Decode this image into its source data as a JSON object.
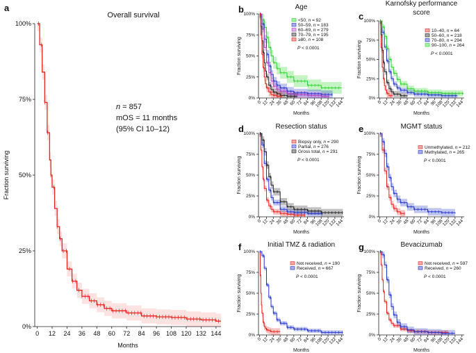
{
  "chart_data": [
    {
      "id": "a",
      "panel_label": "a",
      "type": "line",
      "title": "Overall survival",
      "xlabel": "Months",
      "ylabel": "Fraction surviving",
      "xlim": [
        -2,
        148
      ],
      "ylim": [
        0,
        1
      ],
      "xticks": [
        0,
        12,
        24,
        36,
        48,
        60,
        72,
        84,
        96,
        108,
        120,
        132,
        144
      ],
      "yticks": [
        0,
        0.25,
        0.5,
        0.75,
        1.0
      ],
      "ytick_labels": [
        "0%",
        "25%",
        "50%",
        "75%",
        "100%"
      ],
      "annotations": [
        {
          "prefix": "n",
          "text": " = 857"
        },
        {
          "text": "mOS = 11 months"
        },
        {
          "text": "(95% CI 10–12)"
        }
      ],
      "series": [
        {
          "name": "All patients",
          "color": "#e8231f",
          "end": 148,
          "ci": 0.025,
          "x": [
            0,
            2,
            4,
            6,
            8,
            10,
            11,
            12,
            14,
            16,
            18,
            20,
            24,
            28,
            32,
            36,
            42,
            48,
            54,
            60,
            72,
            84,
            96,
            108,
            120,
            132,
            144,
            148
          ],
          "y": [
            1.0,
            0.93,
            0.84,
            0.74,
            0.64,
            0.55,
            0.5,
            0.46,
            0.39,
            0.33,
            0.29,
            0.25,
            0.19,
            0.15,
            0.12,
            0.1,
            0.085,
            0.072,
            0.06,
            0.052,
            0.045,
            0.035,
            0.032,
            0.03,
            0.025,
            0.022,
            0.018,
            0.018
          ]
        }
      ]
    },
    {
      "id": "b",
      "panel_label": "b",
      "type": "line",
      "title": "Age",
      "xlabel": "Months",
      "ylabel": "Fraction surviving",
      "xlim": [
        -2,
        148
      ],
      "ylim": [
        0,
        1
      ],
      "xticks": [
        0,
        12,
        24,
        36,
        48,
        60,
        72,
        84,
        96,
        108,
        120,
        132,
        144
      ],
      "yticks": [
        0,
        0.25,
        0.5,
        0.75,
        1.0
      ],
      "ytick_labels": [
        "0%",
        "25%",
        "50%",
        "75%",
        "100%"
      ],
      "pvalue": {
        "prefix": "P",
        "text": " < 0.0001"
      },
      "series": [
        {
          "name": "<50, n = 92",
          "name_prefix": "<50, ",
          "name_suffix": " = 92",
          "color": "#2bd42b",
          "end": 144,
          "ci": 0.07,
          "x": [
            0,
            4,
            8,
            12,
            16,
            20,
            24,
            30,
            36,
            48,
            60,
            84,
            108,
            144
          ],
          "y": [
            1,
            0.93,
            0.84,
            0.72,
            0.6,
            0.5,
            0.42,
            0.35,
            0.3,
            0.25,
            0.2,
            0.15,
            0.12,
            0.12
          ]
        },
        {
          "name": "50–59, n = 183",
          "name_prefix": "50–59, ",
          "name_suffix": " = 183",
          "color": "#2233cc",
          "end": 128,
          "ci": 0.05,
          "x": [
            0,
            4,
            8,
            12,
            16,
            20,
            24,
            30,
            36,
            48,
            60,
            84,
            108,
            128
          ],
          "y": [
            1,
            0.88,
            0.7,
            0.52,
            0.38,
            0.28,
            0.2,
            0.15,
            0.12,
            0.08,
            0.06,
            0.05,
            0.04,
            0.04
          ]
        },
        {
          "name": "60–69, n = 279",
          "name_prefix": "60–69, ",
          "name_suffix": " = 279",
          "color": "#b040c0",
          "end": 122,
          "ci": 0.04,
          "x": [
            0,
            4,
            8,
            12,
            16,
            20,
            24,
            30,
            36,
            48,
            60,
            84,
            108,
            122
          ],
          "y": [
            1,
            0.82,
            0.6,
            0.42,
            0.3,
            0.2,
            0.14,
            0.1,
            0.08,
            0.05,
            0.04,
            0.03,
            0.02,
            0.02
          ]
        },
        {
          "name": "70–79, n = 195",
          "name_prefix": "70–79, ",
          "name_suffix": " = 195",
          "color": "#222222",
          "end": 66,
          "ci": 0.04,
          "x": [
            0,
            2,
            4,
            6,
            8,
            10,
            12,
            16,
            20,
            24,
            30,
            36,
            48,
            66
          ],
          "y": [
            1,
            0.85,
            0.68,
            0.54,
            0.42,
            0.32,
            0.25,
            0.15,
            0.1,
            0.07,
            0.05,
            0.03,
            0.02,
            0.02
          ]
        },
        {
          "name": "≥80, n = 108",
          "name_prefix": "≥80, ",
          "name_suffix": " = 108",
          "color": "#e8231f",
          "end": 40,
          "ci": 0.05,
          "x": [
            0,
            2,
            4,
            6,
            8,
            10,
            12,
            16,
            20,
            24,
            30,
            40
          ],
          "y": [
            1,
            0.75,
            0.52,
            0.36,
            0.25,
            0.17,
            0.12,
            0.07,
            0.04,
            0.03,
            0.02,
            0.02
          ]
        }
      ]
    },
    {
      "id": "c",
      "panel_label": "c",
      "type": "line",
      "title": "Karnofsky performance",
      "title_line2": "score",
      "xlabel": "Months",
      "ylabel": "Fraction surviving",
      "xlim": [
        -2,
        148
      ],
      "ylim": [
        0,
        1
      ],
      "xticks": [
        0,
        12,
        24,
        36,
        48,
        60,
        72,
        84,
        96,
        108,
        120,
        132,
        144
      ],
      "yticks": [
        0,
        0.25,
        0.5,
        0.75,
        1.0
      ],
      "ytick_labels": [
        "0%",
        "25%",
        "50%",
        "75%",
        "100%"
      ],
      "pvalue": {
        "prefix": "P",
        "text": " < 0.0001"
      },
      "series": [
        {
          "name": "10–40, n = 64",
          "name_prefix": "10–40, ",
          "name_suffix": " = 64",
          "color": "#e8231f",
          "end": 22,
          "ci": 0.06,
          "x": [
            0,
            2,
            4,
            6,
            8,
            10,
            12,
            16,
            22
          ],
          "y": [
            1,
            0.65,
            0.4,
            0.25,
            0.16,
            0.1,
            0.06,
            0.03,
            0.02
          ]
        },
        {
          "name": "50–60, n = 218",
          "name_prefix": "50–60, ",
          "name_suffix": " = 218",
          "color": "#222222",
          "end": 48,
          "ci": 0.04,
          "x": [
            0,
            2,
            4,
            6,
            8,
            12,
            16,
            20,
            24,
            36,
            48
          ],
          "y": [
            1,
            0.82,
            0.62,
            0.46,
            0.34,
            0.2,
            0.12,
            0.08,
            0.05,
            0.03,
            0.02
          ]
        },
        {
          "name": "70–80, n = 294",
          "name_prefix": "70–80, ",
          "name_suffix": " = 294",
          "color": "#2233cc",
          "end": 136,
          "ci": 0.035,
          "x": [
            0,
            4,
            8,
            12,
            16,
            20,
            24,
            30,
            36,
            48,
            60,
            84,
            108,
            136
          ],
          "y": [
            1,
            0.85,
            0.66,
            0.48,
            0.34,
            0.25,
            0.18,
            0.13,
            0.1,
            0.07,
            0.05,
            0.04,
            0.03,
            0.03
          ]
        },
        {
          "name": "90–100, n = 264",
          "name_prefix": "90–100, ",
          "name_suffix": " = 264",
          "color": "#2bd42b",
          "end": 146,
          "ci": 0.04,
          "x": [
            0,
            4,
            8,
            12,
            16,
            20,
            24,
            30,
            36,
            48,
            60,
            84,
            108,
            146
          ],
          "y": [
            1,
            0.92,
            0.8,
            0.64,
            0.5,
            0.4,
            0.32,
            0.24,
            0.18,
            0.12,
            0.09,
            0.07,
            0.06,
            0.05
          ]
        }
      ]
    },
    {
      "id": "d",
      "panel_label": "d",
      "type": "line",
      "title": "Resection status",
      "xlabel": "Months",
      "ylabel": "Fraction surviving",
      "xlim": [
        -2,
        148
      ],
      "ylim": [
        0,
        1
      ],
      "xticks": [
        0,
        12,
        24,
        36,
        48,
        60,
        72,
        84,
        96,
        108,
        120,
        132,
        144
      ],
      "yticks": [
        0,
        0.25,
        0.5,
        0.75,
        1.0
      ],
      "ytick_labels": [
        "0%",
        "25%",
        "50%",
        "75%",
        "100%"
      ],
      "pvalue": {
        "prefix": "P",
        "text": " < 0.0001"
      },
      "series": [
        {
          "name": "Biopsy only, n = 290",
          "name_prefix": "Biopsy only, ",
          "name_suffix": " = 290",
          "color": "#e8231f",
          "end": 80,
          "ci": 0.035,
          "x": [
            0,
            2,
            4,
            6,
            8,
            12,
            16,
            20,
            24,
            36,
            48,
            60,
            80
          ],
          "y": [
            1,
            0.8,
            0.6,
            0.45,
            0.34,
            0.2,
            0.13,
            0.09,
            0.06,
            0.04,
            0.03,
            0.02,
            0.02
          ]
        },
        {
          "name": "Partial, n = 276",
          "name_prefix": "Partial, ",
          "name_suffix": " = 276",
          "color": "#2233cc",
          "end": 110,
          "ci": 0.035,
          "x": [
            0,
            4,
            8,
            12,
            16,
            20,
            24,
            36,
            48,
            60,
            84,
            110
          ],
          "y": [
            1,
            0.86,
            0.64,
            0.45,
            0.32,
            0.23,
            0.17,
            0.09,
            0.06,
            0.05,
            0.04,
            0.03
          ]
        },
        {
          "name": "Gross total, n = 291",
          "name_prefix": "Gross total, ",
          "name_suffix": " = 291",
          "color": "#222222",
          "end": 146,
          "ci": 0.045,
          "x": [
            0,
            4,
            8,
            12,
            16,
            20,
            24,
            36,
            48,
            60,
            84,
            108,
            146
          ],
          "y": [
            1,
            0.92,
            0.78,
            0.62,
            0.48,
            0.38,
            0.3,
            0.18,
            0.12,
            0.09,
            0.07,
            0.05,
            0.05
          ]
        }
      ]
    },
    {
      "id": "e",
      "panel_label": "e",
      "type": "line",
      "title": "MGMT status",
      "xlabel": "Months",
      "ylabel": "Fraction surviving",
      "xlim": [
        -2,
        148
      ],
      "ylim": [
        0,
        1
      ],
      "xticks": [
        0,
        12,
        24,
        36,
        48,
        60,
        72,
        84,
        96,
        108,
        120,
        132,
        144
      ],
      "yticks": [
        0,
        0.25,
        0.5,
        0.75,
        1.0
      ],
      "ytick_labels": [
        "0%",
        "25%",
        "50%",
        "75%",
        "100%"
      ],
      "pvalue": {
        "prefix": "P",
        "text": " < 0.0001"
      },
      "series": [
        {
          "name": "Unmethylated, n = 212",
          "name_prefix": "Unmethylated, ",
          "name_suffix": " = 212",
          "color": "#e8231f",
          "end": 44,
          "ci": 0.04,
          "x": [
            0,
            4,
            8,
            12,
            16,
            20,
            24,
            30,
            36,
            44
          ],
          "y": [
            1,
            0.8,
            0.55,
            0.36,
            0.23,
            0.15,
            0.1,
            0.06,
            0.04,
            0.04
          ]
        },
        {
          "name": "Methylated, n = 265",
          "name_prefix": "Methylated, ",
          "name_suffix": " = 265",
          "color": "#2233cc",
          "end": 132,
          "ci": 0.045,
          "x": [
            0,
            4,
            8,
            12,
            16,
            20,
            24,
            30,
            36,
            48,
            60,
            84,
            108,
            132
          ],
          "y": [
            1,
            0.9,
            0.76,
            0.6,
            0.47,
            0.36,
            0.28,
            0.21,
            0.17,
            0.12,
            0.09,
            0.06,
            0.05,
            0.04
          ]
        }
      ]
    },
    {
      "id": "f",
      "panel_label": "f",
      "type": "line",
      "title": "Initial TMZ & radiation",
      "xlabel": "Months",
      "ylabel": "Fraction surviving",
      "xlim": [
        -2,
        148
      ],
      "ylim": [
        0,
        1
      ],
      "xticks": [
        0,
        12,
        24,
        36,
        48,
        60,
        72,
        84,
        96,
        108,
        120,
        132,
        144
      ],
      "yticks": [
        0,
        0.25,
        0.5,
        0.75,
        1.0
      ],
      "ytick_labels": [
        "0%",
        "25%",
        "50%",
        "75%",
        "100%"
      ],
      "pvalue": {
        "prefix": "P",
        "text": " < 0.0001"
      },
      "series": [
        {
          "name": "Not received, n = 190",
          "name_prefix": "Not received, ",
          "name_suffix": " = 190",
          "color": "#e8231f",
          "end": 36,
          "ci": 0.04,
          "x": [
            0,
            1,
            2,
            3,
            4,
            6,
            8,
            10,
            12,
            16,
            20,
            24,
            36
          ],
          "y": [
            1,
            0.72,
            0.5,
            0.36,
            0.26,
            0.15,
            0.1,
            0.08,
            0.06,
            0.05,
            0.04,
            0.04,
            0.04
          ]
        },
        {
          "name": "Received, n = 667",
          "name_prefix": "Received, ",
          "name_suffix": " = 667",
          "color": "#2233cc",
          "end": 146,
          "ci": 0.025,
          "x": [
            0,
            4,
            8,
            12,
            16,
            20,
            24,
            30,
            36,
            48,
            60,
            84,
            108,
            146
          ],
          "y": [
            1,
            0.95,
            0.8,
            0.6,
            0.45,
            0.34,
            0.26,
            0.18,
            0.14,
            0.09,
            0.07,
            0.05,
            0.03,
            0.03
          ]
        }
      ]
    },
    {
      "id": "g",
      "panel_label": "g",
      "type": "line",
      "title": "Bevacizumab",
      "xlabel": "Months",
      "ylabel": "Fraction surviving",
      "xlim": [
        -2,
        148
      ],
      "ylim": [
        0,
        1
      ],
      "xticks": [
        0,
        12,
        24,
        36,
        48,
        60,
        72,
        84,
        96,
        108,
        120,
        132,
        144
      ],
      "yticks": [
        0,
        0.25,
        0.5,
        0.75,
        1.0
      ],
      "ytick_labels": [
        "0%",
        "25%",
        "50%",
        "75%",
        "100%"
      ],
      "pvalue": {
        "prefix": "P",
        "text": " < 0.0001"
      },
      "series": [
        {
          "name": "Not received, n = 597",
          "name_prefix": "Not received, ",
          "name_suffix": " = 597",
          "color": "#e8231f",
          "end": 120,
          "ci": 0.025,
          "x": [
            0,
            2,
            4,
            6,
            8,
            12,
            16,
            20,
            24,
            36,
            48,
            60,
            84,
            120
          ],
          "y": [
            1,
            0.84,
            0.66,
            0.52,
            0.4,
            0.26,
            0.18,
            0.14,
            0.11,
            0.07,
            0.05,
            0.04,
            0.03,
            0.03
          ]
        },
        {
          "name": "Received, n = 260",
          "name_prefix": "Received, ",
          "name_suffix": " = 260",
          "color": "#2233cc",
          "end": 132,
          "ci": 0.04,
          "x": [
            0,
            4,
            8,
            12,
            16,
            20,
            24,
            30,
            36,
            48,
            60,
            84,
            108,
            132
          ],
          "y": [
            1,
            0.96,
            0.84,
            0.66,
            0.48,
            0.34,
            0.24,
            0.15,
            0.1,
            0.06,
            0.04,
            0.03,
            0.02,
            0.02
          ]
        }
      ]
    }
  ]
}
